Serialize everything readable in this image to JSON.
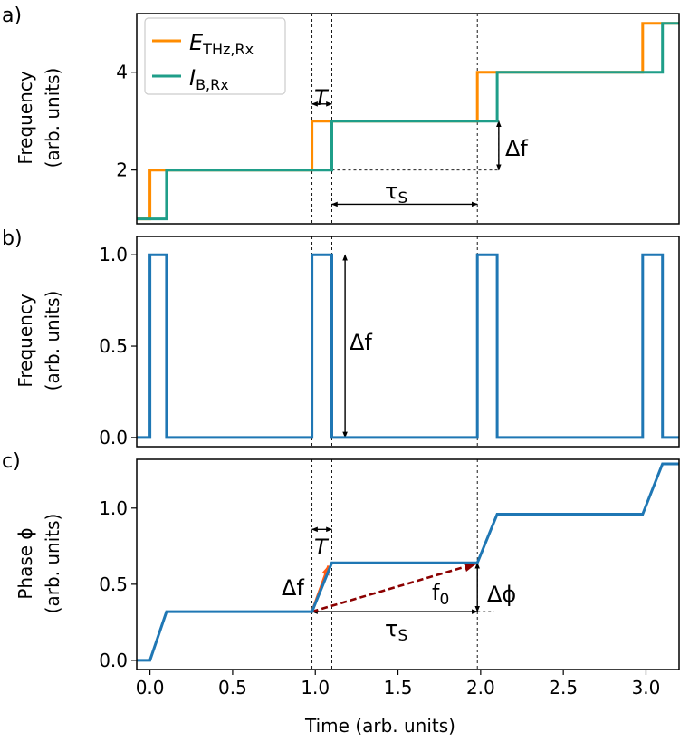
{
  "chart_data": [
    {
      "panel_label": "a)",
      "type": "line",
      "ylabel_line1": "Frequency",
      "ylabel_line2": "(arb. units)",
      "ylim": [
        0.9,
        5.2
      ],
      "yticks": [
        {
          "v": 2,
          "label": "2"
        },
        {
          "v": 4,
          "label": "4"
        }
      ],
      "legend": {
        "position": "upper-left",
        "items": [
          {
            "symbol": "E",
            "sub": "THz,Rx",
            "color": "#ff8c00"
          },
          {
            "symbol": "I",
            "sub": "B,Rx",
            "color": "#1f9e89"
          }
        ]
      },
      "series": [
        {
          "name": "E_THz,Rx",
          "color": "#ff8c00",
          "x": [
            -0.08,
            0.0,
            0.0,
            0.1,
            0.1,
            0.98,
            0.98,
            1.1,
            1.1,
            1.98,
            1.98,
            2.1,
            2.1,
            2.98,
            2.98,
            3.1,
            3.1,
            3.2
          ],
          "y": [
            1.0,
            1.0,
            2.0,
            2.0,
            2.0,
            2.0,
            3.0,
            3.0,
            3.0,
            3.0,
            4.0,
            4.0,
            4.0,
            4.0,
            5.0,
            5.0,
            5.0,
            5.0
          ]
        },
        {
          "name": "I_B,Rx",
          "color": "#1f9e89",
          "x": [
            -0.08,
            0.1,
            0.1,
            1.1,
            1.1,
            2.1,
            2.1,
            3.1,
            3.1,
            3.2
          ],
          "y": [
            1.0,
            1.0,
            2.0,
            2.0,
            3.0,
            3.0,
            4.0,
            4.0,
            5.0,
            5.0
          ]
        }
      ],
      "annotations": {
        "T": "T",
        "delta_f": "Δf",
        "tau": "τ",
        "tau_sub": "S"
      }
    },
    {
      "panel_label": "b)",
      "type": "line",
      "ylabel_line1": "Frequency",
      "ylabel_line2": "(arb. units)",
      "ylim": [
        -0.05,
        1.1
      ],
      "yticks": [
        {
          "v": 0.0,
          "label": "0.0"
        },
        {
          "v": 0.5,
          "label": "0.5"
        },
        {
          "v": 1.0,
          "label": "1.0"
        }
      ],
      "series": [
        {
          "color": "#1f77b4",
          "x": [
            -0.08,
            0.0,
            0.0,
            0.1,
            0.1,
            0.98,
            0.98,
            1.1,
            1.1,
            1.98,
            1.98,
            2.1,
            2.1,
            2.98,
            2.98,
            3.1,
            3.1,
            3.2
          ],
          "y": [
            0,
            0,
            1,
            1,
            0,
            0,
            1,
            1,
            0,
            0,
            1,
            1,
            0,
            0,
            1,
            1,
            0,
            0
          ]
        }
      ],
      "annotations": {
        "delta_f": "Δf"
      }
    },
    {
      "panel_label": "c)",
      "type": "line",
      "xlabel": "Time (arb. units)",
      "ylabel_line1": "Phase ϕ",
      "ylabel_line2": "(arb. units)",
      "xlim": [
        -0.08,
        3.2
      ],
      "ylim": [
        -0.06,
        1.32
      ],
      "xticks": [
        {
          "v": 0.0,
          "label": "0.0"
        },
        {
          "v": 0.5,
          "label": "0.5"
        },
        {
          "v": 1.0,
          "label": "1.0"
        },
        {
          "v": 1.5,
          "label": "1.5"
        },
        {
          "v": 2.0,
          "label": "2.0"
        },
        {
          "v": 2.5,
          "label": "2.5"
        },
        {
          "v": 3.0,
          "label": "3.0"
        }
      ],
      "yticks": [
        {
          "v": 0.0,
          "label": "0.0"
        },
        {
          "v": 0.5,
          "label": "0.5"
        },
        {
          "v": 1.0,
          "label": "1.0"
        }
      ],
      "series": [
        {
          "color": "#1f77b4",
          "x": [
            -0.08,
            0.0,
            0.1,
            0.98,
            1.1,
            1.98,
            2.1,
            2.98,
            3.1,
            3.2
          ],
          "y": [
            0.0,
            0.0,
            0.32,
            0.32,
            0.64,
            0.64,
            0.96,
            0.96,
            1.29,
            1.29
          ]
        }
      ],
      "annotations": {
        "T": "T",
        "delta_f": "Δf",
        "f0": "f",
        "f0_sub": "0",
        "delta_phi": "Δϕ",
        "tau": "τ",
        "tau_sub": "S",
        "delta_f_color": "#ff5a14",
        "f0_color": "#8b0000"
      }
    }
  ]
}
